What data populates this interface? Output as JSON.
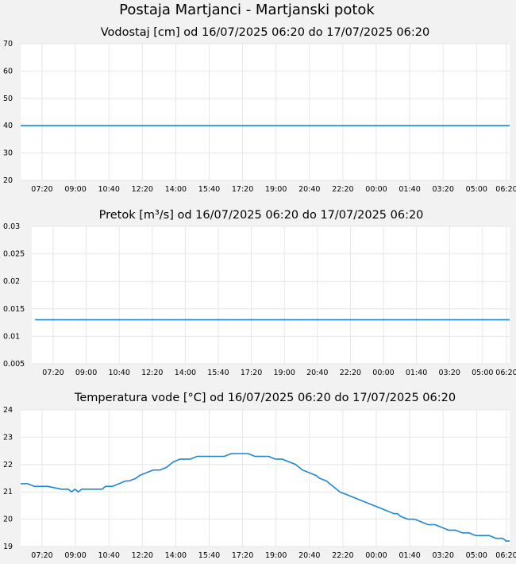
{
  "title": "Postaja Martjanci - Martjanski potok",
  "colors": {
    "line": "#1f86d0",
    "plot_bg": "#ffffff",
    "page_bg": "#f2f2f2",
    "grid": "#e6e6e6"
  },
  "chart_data": [
    {
      "type": "line",
      "title": "Vodostaj [cm] od 16/07/2025 06:20 do 17/07/2025 06:20",
      "xlabel": "",
      "ylabel": "",
      "x_ticks": [
        "07:20",
        "09:00",
        "10:40",
        "12:20",
        "14:00",
        "15:40",
        "17:20",
        "19:00",
        "20:40",
        "22:20",
        "00:00",
        "01:40",
        "03:20",
        "05:00",
        "06:20"
      ],
      "xlim": [
        "16/07/2025 06:20",
        "17/07/2025 06:20"
      ],
      "ylim": [
        20,
        70
      ],
      "y_ticks": [
        "20",
        "30",
        "40",
        "50",
        "60",
        "70"
      ],
      "grid": true,
      "series": [
        {
          "x": [
            "06:20",
            "06:20+1"
          ],
          "values": [
            40,
            40
          ]
        }
      ]
    },
    {
      "type": "line",
      "title": "Pretok [m³/s] od 16/07/2025 06:20 do 17/07/2025 06:20",
      "xlabel": "",
      "ylabel": "",
      "x_ticks": [
        "07:20",
        "09:00",
        "10:40",
        "12:20",
        "14:00",
        "15:40",
        "17:20",
        "19:00",
        "20:40",
        "22:20",
        "00:00",
        "01:40",
        "03:20",
        "05:00",
        "06:20"
      ],
      "xlim": [
        "16/07/2025 06:20",
        "17/07/2025 06:20"
      ],
      "ylim": [
        0.005,
        0.03
      ],
      "y_ticks": [
        "0.005",
        "0.01",
        "0.015",
        "0.02",
        "0.025",
        "0.03"
      ],
      "grid": true,
      "series": [
        {
          "x": [
            "06:30",
            "06:20+1"
          ],
          "values": [
            0.013,
            0.013
          ]
        }
      ]
    },
    {
      "type": "line",
      "title": "Temperatura vode [°C] od 16/07/2025 06:20 do 17/07/2025 06:20",
      "xlabel": "",
      "ylabel": "",
      "x_ticks": [
        "07:20",
        "09:00",
        "10:40",
        "12:20",
        "14:00",
        "15:40",
        "17:20",
        "19:00",
        "20:40",
        "22:20",
        "00:00",
        "01:40",
        "03:20",
        "05:00",
        "06:20"
      ],
      "xlim": [
        "16/07/2025 06:20",
        "17/07/2025 06:20"
      ],
      "ylim": [
        19,
        24
      ],
      "y_ticks": [
        "19",
        "20",
        "21",
        "22",
        "23",
        "24"
      ],
      "grid": true,
      "series": [
        {
          "x": [
            "06:20",
            "06:40",
            "07:00",
            "07:40",
            "08:20",
            "08:40",
            "08:50",
            "09:00",
            "09:10",
            "09:20",
            "10:20",
            "10:30",
            "10:50",
            "11:10",
            "11:30",
            "11:40",
            "12:00",
            "12:10",
            "12:30",
            "12:50",
            "13:10",
            "13:30",
            "13:40",
            "13:50",
            "14:10",
            "14:40",
            "15:00",
            "16:20",
            "16:40",
            "17:30",
            "17:50",
            "18:30",
            "18:50",
            "19:10",
            "19:30",
            "19:50",
            "20:00",
            "20:10",
            "20:30",
            "20:50",
            "21:00",
            "21:20",
            "21:30",
            "21:40",
            "21:50",
            "22:00",
            "22:20",
            "22:40",
            "23:00",
            "23:20",
            "23:40",
            "00:00",
            "00:20",
            "00:40",
            "00:50",
            "01:00",
            "01:20",
            "01:40",
            "02:00",
            "02:20",
            "02:40",
            "03:00",
            "03:20",
            "03:40",
            "04:00",
            "04:20",
            "04:40",
            "05:00",
            "05:20",
            "05:40",
            "06:00",
            "06:10",
            "06:20+1"
          ],
          "values": [
            21.3,
            21.3,
            21.2,
            21.2,
            21.1,
            21.1,
            21.0,
            21.1,
            21.0,
            21.1,
            21.1,
            21.2,
            21.2,
            21.3,
            21.4,
            21.4,
            21.5,
            21.6,
            21.7,
            21.8,
            21.8,
            21.9,
            22.0,
            22.1,
            22.2,
            22.2,
            22.3,
            22.3,
            22.4,
            22.4,
            22.3,
            22.3,
            22.2,
            22.2,
            22.1,
            22.0,
            21.9,
            21.8,
            21.7,
            21.6,
            21.5,
            21.4,
            21.3,
            21.2,
            21.1,
            21.0,
            20.9,
            20.8,
            20.7,
            20.6,
            20.5,
            20.4,
            20.3,
            20.2,
            20.2,
            20.1,
            20.0,
            20.0,
            19.9,
            19.8,
            19.8,
            19.7,
            19.6,
            19.6,
            19.5,
            19.5,
            19.4,
            19.4,
            19.4,
            19.3,
            19.3,
            19.2,
            19.2
          ]
        }
      ]
    }
  ]
}
